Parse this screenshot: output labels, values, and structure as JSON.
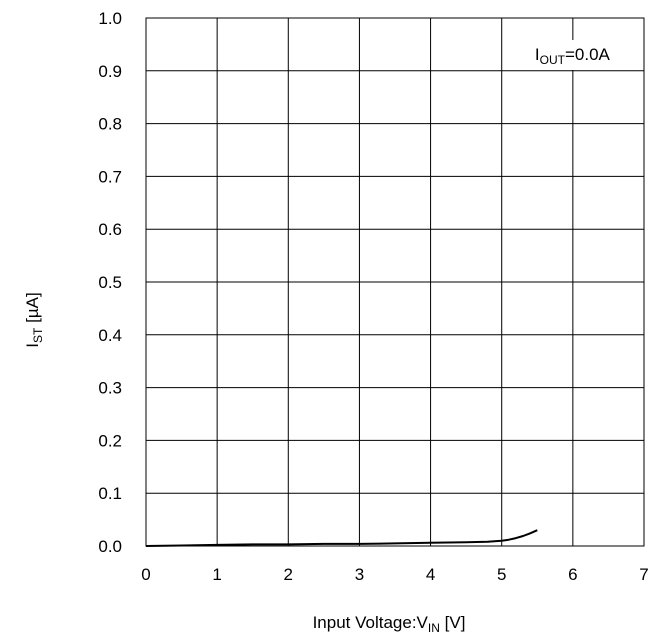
{
  "chart_data": {
    "type": "line",
    "title": "",
    "xlabel": {
      "text": "Input Voltage:V",
      "subscript": "IN",
      "suffix": " [V]"
    },
    "ylabel": {
      "text": "I",
      "subscript": "ST",
      "suffix": " [µA]"
    },
    "xlim": [
      0,
      7
    ],
    "ylim": [
      0,
      1.0
    ],
    "x_ticks": [
      "0",
      "1",
      "2",
      "3",
      "4",
      "5",
      "6",
      "7"
    ],
    "y_ticks": [
      "0.0",
      "0.1",
      "0.2",
      "0.3",
      "0.4",
      "0.5",
      "0.6",
      "0.7",
      "0.8",
      "0.9",
      "1.0"
    ],
    "grid": true,
    "annotation": {
      "text": "I",
      "subscript": "OUT",
      "suffix": "=0.0A",
      "placement": "top-right"
    },
    "series": [
      {
        "color": "#000000",
        "x": [
          0.0,
          0.5,
          1.0,
          1.5,
          2.0,
          2.5,
          3.0,
          3.5,
          4.0,
          4.5,
          4.8,
          5.0,
          5.1,
          5.2,
          5.3,
          5.4,
          5.5
        ],
        "y": [
          0.0,
          0.001,
          0.002,
          0.003,
          0.003,
          0.004,
          0.004,
          0.005,
          0.006,
          0.007,
          0.008,
          0.01,
          0.012,
          0.015,
          0.019,
          0.024,
          0.03
        ]
      }
    ]
  }
}
